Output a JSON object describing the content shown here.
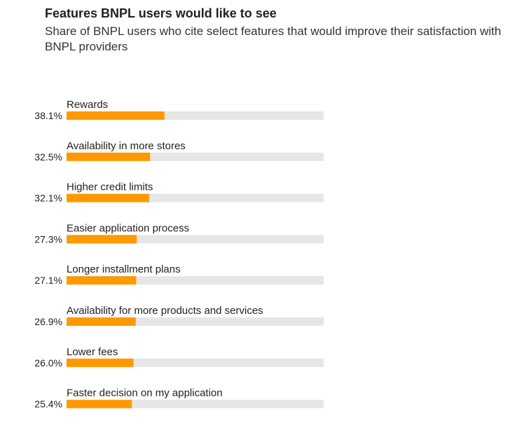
{
  "header": {
    "title": "Features BNPL users would like to see",
    "subtitle": "Share of BNPL users who cite select features that would improve their satisfaction with BNPL providers"
  },
  "colors": {
    "bar": "#FF9900",
    "track": "#E6E6E6"
  },
  "chart_data": {
    "type": "bar",
    "orientation": "horizontal",
    "title": "Features BNPL users would like to see",
    "subtitle": "Share of BNPL users who cite select features that would improve their satisfaction with BNPL providers",
    "categories": [
      "Rewards",
      "Availability in more stores",
      "Higher credit limits",
      "Easier application process",
      "Longer installment plans",
      "Availability for more products and services",
      "Lower fees",
      "Faster decision on my application"
    ],
    "values": [
      38.1,
      32.5,
      32.1,
      27.3,
      27.1,
      26.9,
      26.0,
      25.4
    ],
    "value_labels": [
      "38.1%",
      "32.5%",
      "32.1%",
      "27.3%",
      "27.1%",
      "26.9%",
      "26.0%",
      "25.4%"
    ],
    "xlim": [
      0,
      100
    ],
    "grid": false,
    "legend": "none"
  }
}
